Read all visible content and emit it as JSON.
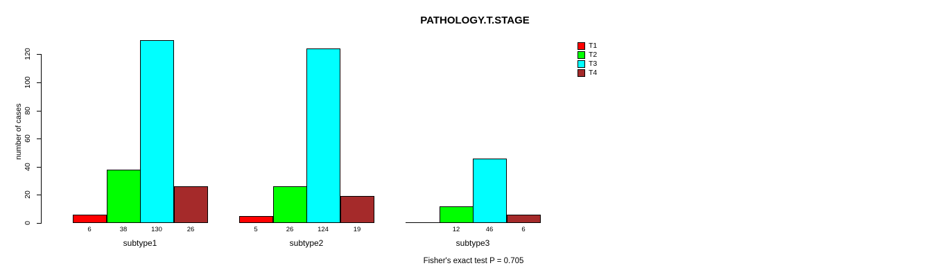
{
  "figure": {
    "background": "#ffffff"
  },
  "chart_data": {
    "type": "bar",
    "title": "PATHOLOGY.T.STAGE",
    "xlabel": "",
    "ylabel": "number of cases",
    "categories": [
      "subtype1",
      "subtype2",
      "subtype3"
    ],
    "series": [
      {
        "name": "T1",
        "color": "#ff0000",
        "values": [
          6,
          5,
          0
        ]
      },
      {
        "name": "T2",
        "color": "#00ff00",
        "values": [
          38,
          26,
          12
        ]
      },
      {
        "name": "T3",
        "color": "#00ffff",
        "values": [
          130,
          124,
          46
        ]
      },
      {
        "name": "T4",
        "color": "#a52a2a",
        "values": [
          26,
          19,
          6
        ]
      }
    ],
    "bar_value_labels": [
      [
        "6",
        "38",
        "130",
        "26"
      ],
      [
        "5",
        "26",
        "124",
        "19"
      ],
      [
        "",
        "12",
        "46",
        "6"
      ]
    ],
    "yticks": [
      0,
      20,
      40,
      60,
      80,
      100,
      120
    ],
    "ylim": [
      0,
      130
    ],
    "grid": false,
    "legend_position": "right-outside",
    "bar_border_color": "#000000",
    "annotation": "Fisher's exact test P = 0.705"
  }
}
